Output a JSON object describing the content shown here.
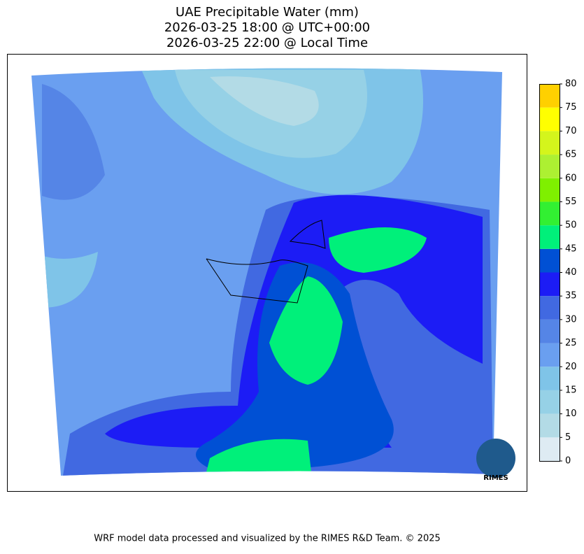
{
  "title": [
    "UAE Precipitable Water (mm)",
    "2026-03-25 18:00 @ UTC+00:00",
    "2026-03-25 22:00 @ Local Time"
  ],
  "colorbar": {
    "lim": [
      0,
      80
    ],
    "ticks": [
      0,
      5,
      10,
      15,
      20,
      25,
      30,
      35,
      40,
      45,
      50,
      55,
      60,
      65,
      70,
      75,
      80
    ],
    "colors": [
      "#deebf3",
      "#b3dbe6",
      "#96d1e6",
      "#7fc4e8",
      "#6a9ff0",
      "#5585e6",
      "#4169e1",
      "#1c1cf5",
      "#0050d4",
      "#00f07a",
      "#32f032",
      "#7ff000",
      "#adf032",
      "#d4f51c",
      "#ffff00",
      "#ffd000"
    ]
  },
  "logo_text": "RIMES",
  "footer": "WRF model data processed and visualized by the RIMES R&D Team. © 2025"
}
